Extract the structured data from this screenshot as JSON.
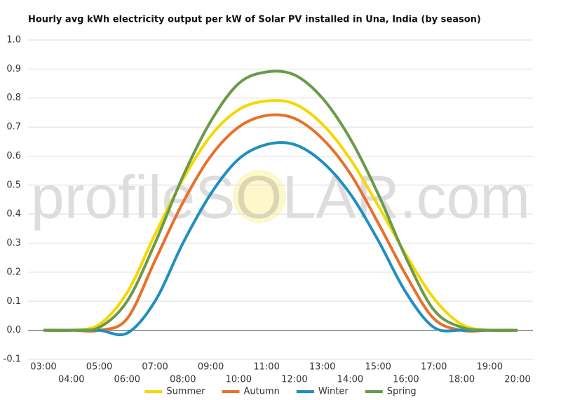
{
  "chart_data": {
    "type": "line",
    "title": "Hourly avg kWh electricity output per kW of Solar PV installed in Una, India (by season)",
    "watermark": "profileSOLAR.com",
    "categories": [
      "03:00",
      "04:00",
      "05:00",
      "06:00",
      "07:00",
      "08:00",
      "09:00",
      "10:00",
      "11:00",
      "12:00",
      "13:00",
      "14:00",
      "15:00",
      "16:00",
      "17:00",
      "18:00",
      "19:00",
      "20:00"
    ],
    "series": [
      {
        "name": "Summer",
        "color": "#f5d800",
        "values": [
          0,
          0,
          0.02,
          0.13,
          0.33,
          0.52,
          0.67,
          0.76,
          0.79,
          0.78,
          0.71,
          0.59,
          0.43,
          0.26,
          0.11,
          0.02,
          0,
          0
        ]
      },
      {
        "name": "Autumn",
        "color": "#e8702a",
        "values": [
          0,
          0,
          0,
          0.04,
          0.24,
          0.44,
          0.6,
          0.7,
          0.74,
          0.73,
          0.66,
          0.54,
          0.37,
          0.19,
          0.04,
          0,
          0,
          0
        ]
      },
      {
        "name": "Winter",
        "color": "#1f8fbf",
        "values": [
          0,
          0,
          0,
          -0.01,
          0.1,
          0.3,
          0.47,
          0.59,
          0.64,
          0.64,
          0.58,
          0.47,
          0.31,
          0.13,
          0.01,
          0,
          0,
          0
        ]
      },
      {
        "name": "Spring",
        "color": "#6a9a4a",
        "values": [
          0,
          0,
          0.01,
          0.1,
          0.3,
          0.53,
          0.72,
          0.85,
          0.89,
          0.88,
          0.8,
          0.66,
          0.47,
          0.25,
          0.07,
          0.01,
          0,
          0
        ]
      }
    ],
    "ylim": [
      -0.1,
      1.0
    ],
    "yticks": [
      -0.1,
      {
        "value": 0,
        "label": "0.0"
      },
      0.1,
      0.2,
      0.3,
      0.4,
      0.5,
      0.6,
      0.7,
      0.8,
      0.9,
      {
        "value": 1,
        "label": "1.0"
      }
    ],
    "grid": true
  }
}
